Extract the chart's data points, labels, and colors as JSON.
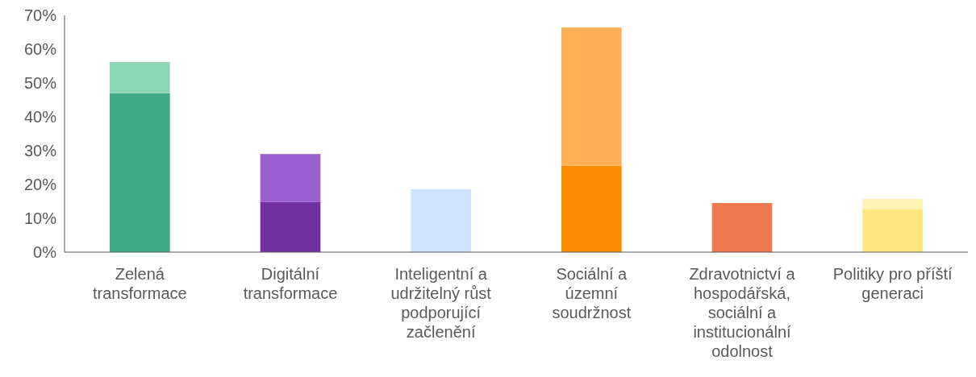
{
  "chart_data": {
    "type": "bar",
    "stacked": true,
    "categories": [
      "Zelená transformace",
      "Digitální transformace",
      "Inteligentní a udržitelný růst podporující začlenění",
      "Sociální a územní soudržnost",
      "Zdravotnictví a hospodářská, sociální a institucionální odolnost",
      "Politiky pro příští generaci"
    ],
    "series": [
      {
        "colors": [
          "#3fa985",
          "#7030a0",
          "#cce4ff",
          "#fb8c00",
          "#ec784b",
          "#ffe57b"
        ],
        "values": [
          47,
          14.8,
          18.6,
          25.5,
          14.5,
          12.6
        ]
      },
      {
        "colors": [
          "#8bd6b7",
          "#9c5fcf",
          null,
          "#ffb155",
          null,
          "#fff2b3"
        ],
        "values": [
          9.2,
          14.2,
          null,
          40.9,
          null,
          3.1
        ]
      }
    ],
    "ylim": [
      0,
      70
    ],
    "yticks": [
      {
        "value": 0,
        "label": "0%"
      },
      {
        "value": 10,
        "label": "10%"
      },
      {
        "value": 20,
        "label": "20%"
      },
      {
        "value": 30,
        "label": "30%"
      },
      {
        "value": 40,
        "label": "40%"
      },
      {
        "value": 50,
        "label": "50%"
      },
      {
        "value": 60,
        "label": "60%"
      },
      {
        "value": 70,
        "label": "70%"
      }
    ],
    "grid": false
  }
}
